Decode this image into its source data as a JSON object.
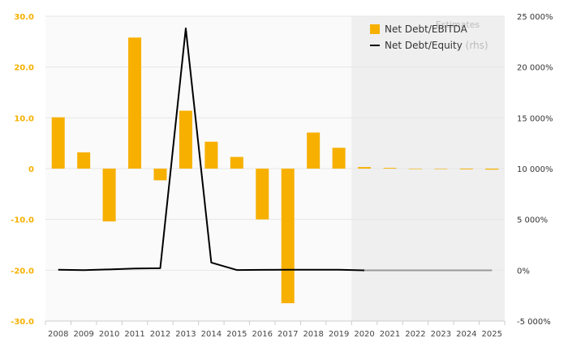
{
  "chart_data": {
    "type": "bar",
    "categories": [
      "2008",
      "2009",
      "2010",
      "2011",
      "2012",
      "2013",
      "2014",
      "2015",
      "2016",
      "2017",
      "2018",
      "2019",
      "2020",
      "2021",
      "2022",
      "2023",
      "2024",
      "2025"
    ],
    "series": [
      {
        "name": "Net Debt/EBITDA",
        "type": "bar",
        "axis": "left",
        "color": "#F7B000",
        "values": [
          10.1,
          3.2,
          -10.4,
          25.8,
          -2.3,
          11.4,
          5.3,
          2.3,
          -10.0,
          -26.5,
          7.1,
          4.1,
          0.3,
          0.15,
          -0.1,
          0,
          -0.15,
          -0.2
        ]
      },
      {
        "name": "Net Debt/Equity",
        "name_suffix": "(rhs)",
        "type": "line",
        "axis": "right",
        "color": "#000000",
        "estimate_color": "#999999",
        "values": [
          50,
          10,
          80,
          170,
          200,
          23800,
          750,
          20,
          40,
          50,
          50,
          50,
          -10,
          -10,
          -10,
          -10,
          -10,
          -10
        ]
      }
    ],
    "y_left": {
      "min": -30,
      "max": 30,
      "ticks": [
        30,
        20,
        10,
        0,
        -10,
        -20,
        -30
      ],
      "tick_labels": [
        "30.0",
        "20.0",
        "10.0",
        "0",
        "-10.0",
        "-20.0",
        "-30.0"
      ],
      "color": "#F7B000"
    },
    "y_right": {
      "min": -5000,
      "max": 25000,
      "ticks": [
        25000,
        20000,
        15000,
        10000,
        5000,
        0,
        -5000
      ],
      "tick_labels": [
        "25 000%",
        "20 000%",
        "15 000%",
        "10 000%",
        "5 000%",
        "0%",
        "-5 000%"
      ]
    },
    "estimates": {
      "label": "Estimates",
      "start": "2020",
      "end": "2025",
      "shade_color": "#EFEFEF"
    },
    "grid": true,
    "legend": "top-right"
  }
}
